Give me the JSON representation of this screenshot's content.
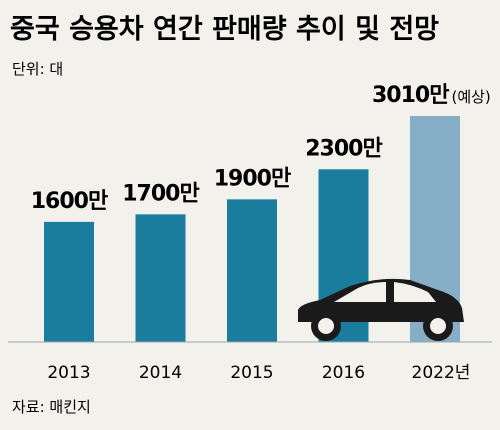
{
  "chart_data": {
    "type": "bar",
    "title": "중국 승용차 연간 판매량 추이 및 전망",
    "unit_label": "단위: 대",
    "source": "자료: 매킨지",
    "categories": [
      "2013",
      "2014",
      "2015",
      "2016",
      "2022년"
    ],
    "values": [
      16000000,
      17000000,
      19000000,
      23000000,
      30100000
    ],
    "data_labels": [
      "1600만",
      "1700만",
      "1900만",
      "2300만",
      "3010만"
    ],
    "forecast_note": "(예상)",
    "forecast_index": 4,
    "ylim": [
      0,
      30100000
    ],
    "grid": false,
    "colors": {
      "bar": "#1a7d9e",
      "forecast_bar": "#86aec6",
      "car": "#1a1a1a",
      "background": "#f2f1ec"
    }
  },
  "icons": {
    "car": "car-icon"
  }
}
